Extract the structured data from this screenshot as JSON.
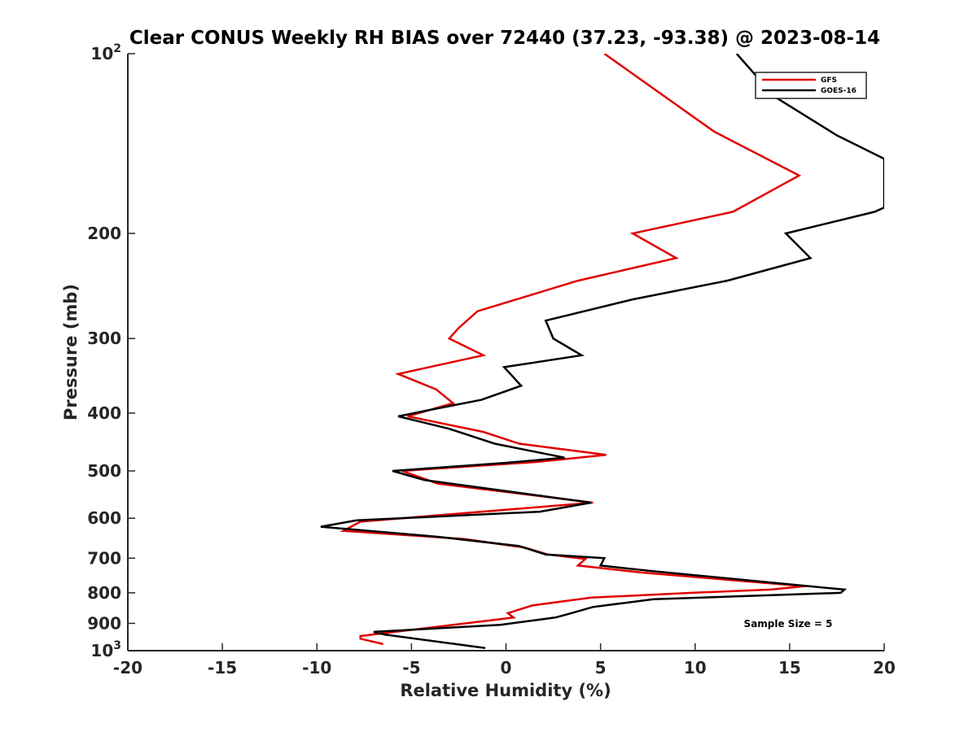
{
  "chart_data": {
    "type": "line",
    "title": "Clear CONUS Weekly RH BIAS over 72440 (37.23, -93.38) @ 2023-08-14",
    "xlabel": "Relative Humidity (%)",
    "ylabel": "Pressure (mb)",
    "xlim": [
      -20,
      20
    ],
    "ylim": [
      100,
      1000
    ],
    "y_scale": "log",
    "y_reversed": true,
    "x_ticks": [
      -20,
      -15,
      -10,
      -5,
      0,
      5,
      10,
      15,
      20
    ],
    "x_tick_labels": [
      "-20",
      "-15",
      "-10",
      "-5",
      "0",
      "5",
      "10",
      "15",
      "20"
    ],
    "y_ticks": [
      100,
      200,
      300,
      400,
      500,
      600,
      700,
      800,
      900,
      1000
    ],
    "y_tick_labels": [
      {
        "base": "10",
        "exp": "2"
      },
      {
        "base": "200",
        "exp": ""
      },
      {
        "base": "300",
        "exp": ""
      },
      {
        "base": "400",
        "exp": ""
      },
      {
        "base": "500",
        "exp": ""
      },
      {
        "base": "600",
        "exp": ""
      },
      {
        "base": "700",
        "exp": ""
      },
      {
        "base": "800",
        "exp": ""
      },
      {
        "base": "900",
        "exp": ""
      },
      {
        "base": "10",
        "exp": "3"
      }
    ],
    "grid": false,
    "legend_position": "top-right",
    "annotation": "Sample Size = 5",
    "series": [
      {
        "name": "GFS",
        "color": "#e00000",
        "points": [
          [
            5.2,
            100
          ],
          [
            11,
            135
          ],
          [
            15.5,
            160
          ],
          [
            12,
            184
          ],
          [
            6.7,
            200
          ],
          [
            9,
            220
          ],
          [
            3.8,
            240
          ],
          [
            -1.5,
            270
          ],
          [
            -2.5,
            288
          ],
          [
            -3,
            300
          ],
          [
            -1.2,
            320
          ],
          [
            -5.7,
            344
          ],
          [
            -3.7,
            365
          ],
          [
            -2.8,
            385
          ],
          [
            -5.2,
            405
          ],
          [
            -1.2,
            430
          ],
          [
            0.7,
            450
          ],
          [
            5.3,
            470
          ],
          [
            1.6,
            483
          ],
          [
            -5.5,
            500
          ],
          [
            -3.6,
            525
          ],
          [
            4.6,
            565
          ],
          [
            -7.7,
            608
          ],
          [
            -8.6,
            630
          ],
          [
            -2.2,
            650
          ],
          [
            1,
            672
          ],
          [
            2.2,
            690
          ],
          [
            4.2,
            702
          ],
          [
            3.8,
            720
          ],
          [
            7.2,
            740
          ],
          [
            15.8,
            780
          ],
          [
            14,
            790
          ],
          [
            9.8,
            800
          ],
          [
            4.5,
            815
          ],
          [
            1.4,
            840
          ],
          [
            0.1,
            865
          ],
          [
            0.4,
            880
          ],
          [
            -7.7,
            945
          ],
          [
            -7.7,
            955
          ],
          [
            -6.5,
            975
          ]
        ]
      },
      {
        "name": "GOES-16",
        "color": "#000000",
        "points": [
          [
            12.2,
            100
          ],
          [
            14.2,
            118
          ],
          [
            17.5,
            137
          ],
          [
            20,
            150
          ],
          [
            20,
            181
          ],
          [
            19.5,
            184
          ],
          [
            14.8,
            200
          ],
          [
            16.1,
            220
          ],
          [
            11.7,
            240
          ],
          [
            6.7,
            258
          ],
          [
            2.1,
            280
          ],
          [
            2.5,
            300
          ],
          [
            4,
            320
          ],
          [
            -0.1,
            335
          ],
          [
            0.8,
            360
          ],
          [
            -1.3,
            380
          ],
          [
            -4,
            395
          ],
          [
            -5.7,
            405
          ],
          [
            -3,
            425
          ],
          [
            -0.6,
            450
          ],
          [
            3.1,
            475
          ],
          [
            -0.1,
            485
          ],
          [
            -6,
            500
          ],
          [
            -4.3,
            518
          ],
          [
            4.5,
            565
          ],
          [
            1.8,
            585
          ],
          [
            -7.9,
            605
          ],
          [
            -9.8,
            620
          ],
          [
            -3.5,
            645
          ],
          [
            0.7,
            668
          ],
          [
            2.1,
            690
          ],
          [
            5.2,
            700
          ],
          [
            5,
            720
          ],
          [
            7.6,
            735
          ],
          [
            17.9,
            790
          ],
          [
            17.7,
            800
          ],
          [
            7.8,
            820
          ],
          [
            4.6,
            845
          ],
          [
            3.2,
            870
          ],
          [
            2.6,
            880
          ],
          [
            -0.3,
            905
          ],
          [
            -7,
            930
          ],
          [
            -6.4,
            940
          ],
          [
            -1.1,
            990
          ]
        ]
      }
    ]
  }
}
